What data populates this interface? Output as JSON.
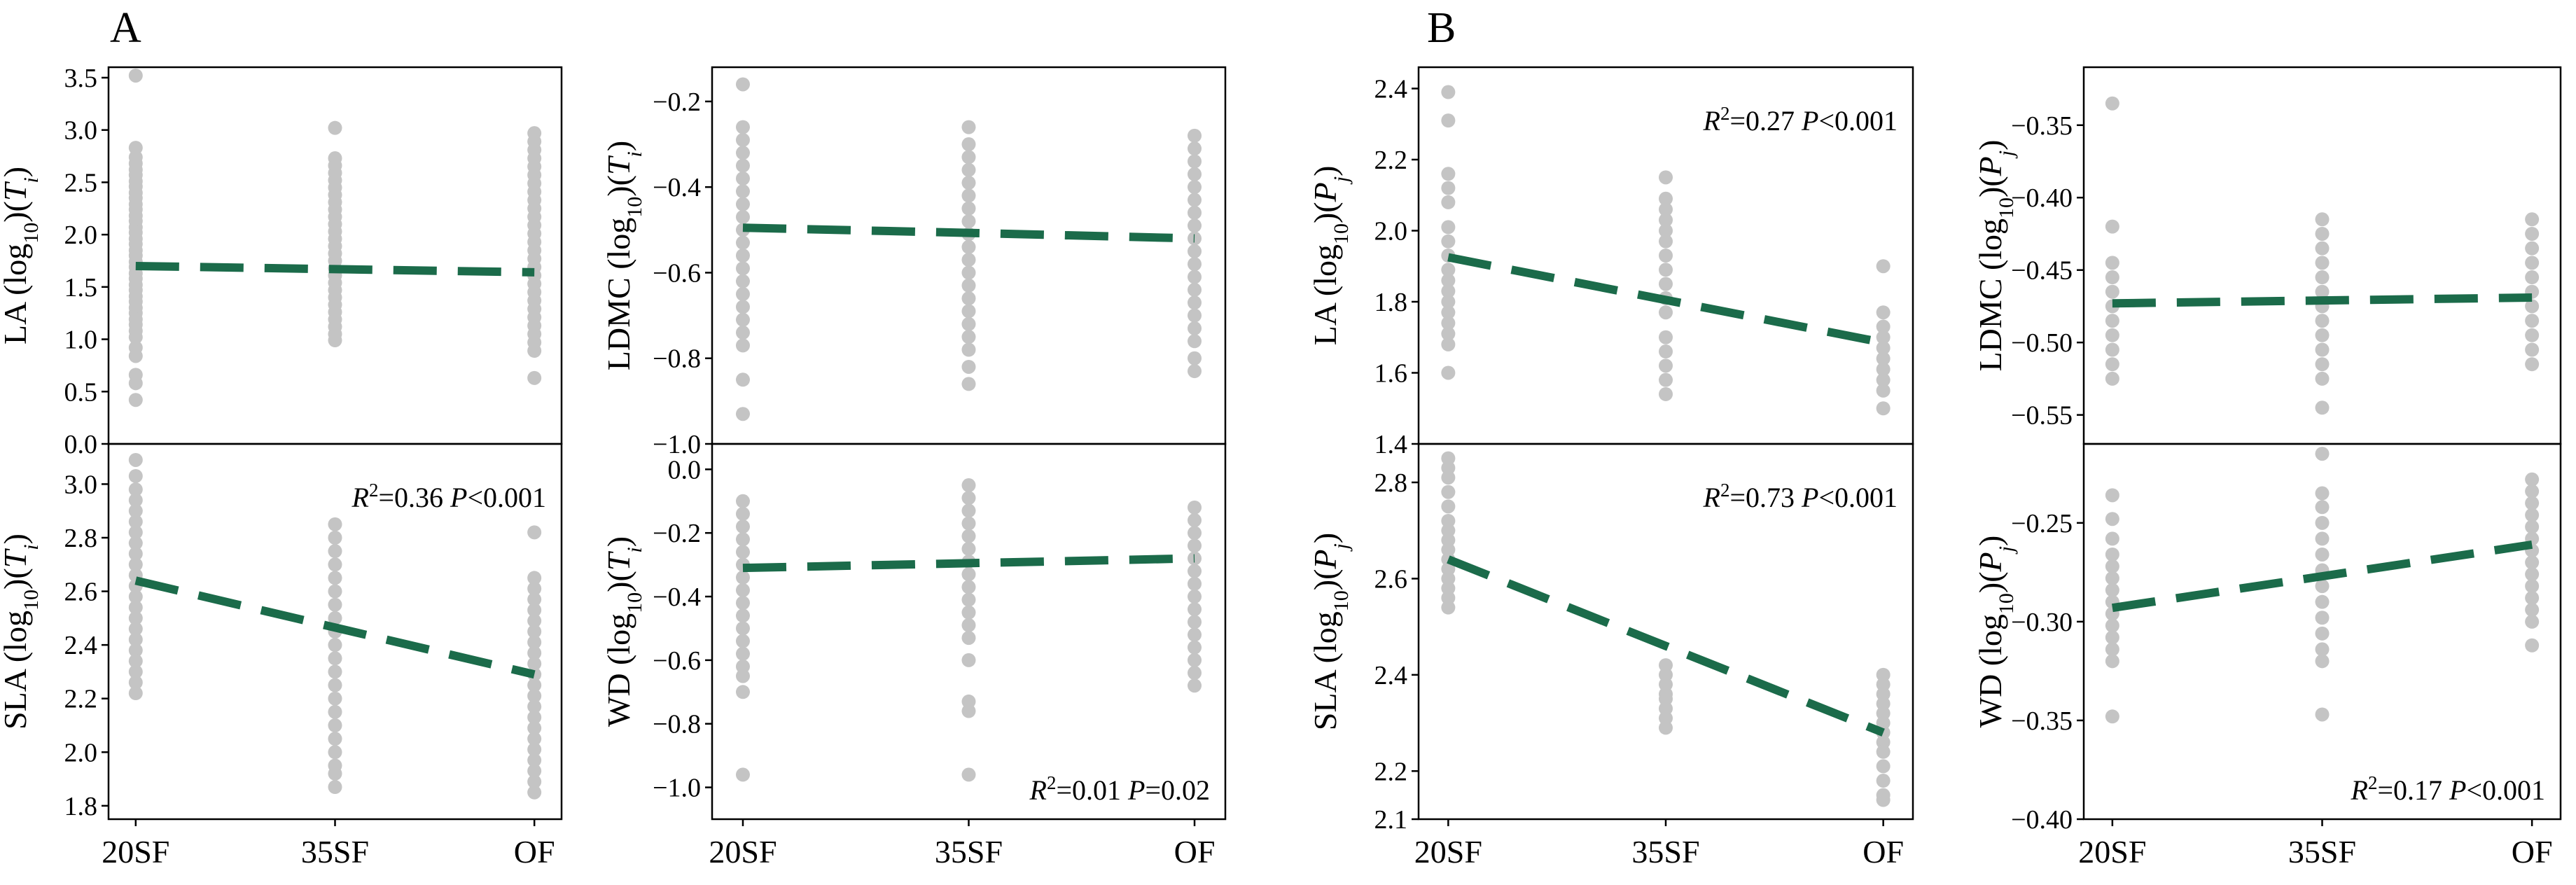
{
  "figure": {
    "groups": [
      {
        "letter": "A",
        "variable": "T"
      },
      {
        "letter": "B",
        "variable": "P"
      }
    ],
    "categories": [
      "20SF",
      "35SF",
      "OF"
    ]
  },
  "colors": {
    "point": "#c4c4c4",
    "trend": "#1b6b4a",
    "frame": "#000000"
  },
  "chart_data": [
    {
      "id": "A-LA",
      "group": "A",
      "type": "scatter",
      "trait": "LA",
      "variable": "T",
      "ylabel": "LA (log10)(Ti)",
      "ylim": [
        0.0,
        3.6
      ],
      "yticks": [
        "0.0",
        "0.5",
        "1.0",
        "1.5",
        "2.0",
        "2.5",
        "3.0",
        "3.5"
      ],
      "categories": [
        "20SF",
        "35SF",
        "OF"
      ],
      "points": [
        [
          3.52,
          2.83,
          2.74,
          2.68,
          2.62,
          2.57,
          2.51,
          2.46,
          2.4,
          2.35,
          2.29,
          2.24,
          2.18,
          2.13,
          2.07,
          2.02,
          1.96,
          1.91,
          1.85,
          1.8,
          1.74,
          1.69,
          1.63,
          1.58,
          1.52,
          1.47,
          1.41,
          1.36,
          1.3,
          1.25,
          1.19,
          1.14,
          1.08,
          1.02,
          0.92,
          0.84,
          0.66,
          0.58,
          0.42
        ],
        [
          3.02,
          2.73,
          2.66,
          2.59,
          2.52,
          2.45,
          2.38,
          2.31,
          2.24,
          2.17,
          2.1,
          2.03,
          1.96,
          1.89,
          1.82,
          1.75,
          1.68,
          1.61,
          1.54,
          1.47,
          1.4,
          1.33,
          1.26,
          1.19,
          1.12,
          1.05,
          0.99
        ],
        [
          2.97,
          2.89,
          2.81,
          2.73,
          2.65,
          2.57,
          2.49,
          2.41,
          2.33,
          2.25,
          2.17,
          2.09,
          2.01,
          1.93,
          1.85,
          1.77,
          1.69,
          1.61,
          1.53,
          1.45,
          1.37,
          1.29,
          1.21,
          1.13,
          1.05,
          0.97,
          0.89,
          0.63
        ]
      ],
      "trend": [
        1.7,
        1.67,
        1.64
      ],
      "stats": null
    },
    {
      "id": "A-LDMC",
      "group": "A",
      "type": "scatter",
      "trait": "LDMC",
      "variable": "T",
      "ylabel": "LDMC (log10)(Ti)",
      "ylim": [
        -1.0,
        -0.12
      ],
      "yticks": [
        "−1.0",
        "−0.8",
        "−0.6",
        "−0.4",
        "−0.2"
      ],
      "categories": [
        "20SF",
        "35SF",
        "OF"
      ],
      "points": [
        [
          -0.16,
          -0.26,
          -0.29,
          -0.32,
          -0.35,
          -0.38,
          -0.41,
          -0.44,
          -0.47,
          -0.5,
          -0.53,
          -0.56,
          -0.59,
          -0.62,
          -0.65,
          -0.68,
          -0.71,
          -0.74,
          -0.77,
          -0.85,
          -0.93
        ],
        [
          -0.26,
          -0.3,
          -0.33,
          -0.36,
          -0.39,
          -0.42,
          -0.45,
          -0.48,
          -0.51,
          -0.54,
          -0.57,
          -0.6,
          -0.63,
          -0.66,
          -0.69,
          -0.72,
          -0.75,
          -0.78,
          -0.82,
          -0.86
        ],
        [
          -0.28,
          -0.31,
          -0.34,
          -0.37,
          -0.4,
          -0.43,
          -0.46,
          -0.49,
          -0.52,
          -0.55,
          -0.58,
          -0.61,
          -0.64,
          -0.67,
          -0.7,
          -0.73,
          -0.76,
          -0.8,
          -0.83
        ]
      ],
      "trend": [
        -0.495,
        -0.507,
        -0.52
      ],
      "stats": null
    },
    {
      "id": "A-SLA",
      "group": "A",
      "type": "scatter",
      "trait": "SLA",
      "variable": "T",
      "ylabel": "SLA (log10)(Ti)",
      "ylim": [
        1.75,
        3.15
      ],
      "yticks": [
        "1.8",
        "2.0",
        "2.2",
        "2.4",
        "2.6",
        "2.8",
        "3.0"
      ],
      "categories": [
        "20SF",
        "35SF",
        "OF"
      ],
      "points": [
        [
          3.09,
          3.03,
          2.98,
          2.94,
          2.9,
          2.86,
          2.82,
          2.78,
          2.74,
          2.7,
          2.66,
          2.62,
          2.58,
          2.54,
          2.5,
          2.46,
          2.42,
          2.38,
          2.34,
          2.3,
          2.26,
          2.22
        ],
        [
          2.85,
          2.8,
          2.75,
          2.7,
          2.65,
          2.6,
          2.55,
          2.5,
          2.45,
          2.4,
          2.35,
          2.3,
          2.25,
          2.2,
          2.15,
          2.1,
          2.05,
          2.0,
          1.95,
          1.92,
          1.87
        ],
        [
          2.82,
          2.65,
          2.61,
          2.57,
          2.53,
          2.49,
          2.45,
          2.41,
          2.37,
          2.33,
          2.29,
          2.25,
          2.21,
          2.17,
          2.13,
          2.09,
          2.05,
          2.01,
          1.97,
          1.93,
          1.89,
          1.85
        ]
      ],
      "trend": [
        2.64,
        2.465,
        2.29
      ],
      "stats": {
        "r2": "R2=0.36",
        "p": "P<0.001"
      }
    },
    {
      "id": "A-WD",
      "group": "A",
      "type": "scatter",
      "trait": "WD",
      "variable": "T",
      "ylabel": "WD (log10)(Ti)",
      "ylim": [
        -1.1,
        0.08
      ],
      "yticks": [
        "−1.0",
        "−0.8",
        "−0.6",
        "−0.4",
        "−0.2",
        "0.0"
      ],
      "categories": [
        "20SF",
        "35SF",
        "OF"
      ],
      "points": [
        [
          -0.1,
          -0.14,
          -0.18,
          -0.22,
          -0.26,
          -0.3,
          -0.34,
          -0.38,
          -0.42,
          -0.46,
          -0.5,
          -0.54,
          -0.58,
          -0.62,
          -0.65,
          -0.7,
          -0.96
        ],
        [
          -0.05,
          -0.09,
          -0.13,
          -0.17,
          -0.21,
          -0.25,
          -0.29,
          -0.33,
          -0.37,
          -0.41,
          -0.45,
          -0.49,
          -0.53,
          -0.6,
          -0.73,
          -0.76,
          -0.96
        ],
        [
          -0.12,
          -0.16,
          -0.2,
          -0.24,
          -0.28,
          -0.32,
          -0.36,
          -0.4,
          -0.44,
          -0.48,
          -0.52,
          -0.56,
          -0.6,
          -0.64,
          -0.68
        ]
      ],
      "trend": [
        -0.31,
        -0.295,
        -0.28
      ],
      "stats": {
        "r2": "R2=0.01",
        "p": "P=0.02"
      }
    },
    {
      "id": "B-LA",
      "group": "B",
      "type": "scatter",
      "trait": "LA",
      "variable": "P",
      "ylabel": "LA (log10)(Pj)",
      "ylim": [
        1.4,
        2.46
      ],
      "yticks": [
        "1.4",
        "1.6",
        "1.8",
        "2.0",
        "2.2",
        "2.4"
      ],
      "categories": [
        "20SF",
        "35SF",
        "OF"
      ],
      "points": [
        [
          2.39,
          2.31,
          2.16,
          2.12,
          2.08,
          2.01,
          1.97,
          1.93,
          1.89,
          1.86,
          1.83,
          1.8,
          1.77,
          1.74,
          1.71,
          1.68,
          1.6
        ],
        [
          2.15,
          2.09,
          2.06,
          2.03,
          2.0,
          1.97,
          1.93,
          1.89,
          1.85,
          1.81,
          1.77,
          1.7,
          1.66,
          1.62,
          1.58,
          1.54
        ],
        [
          1.9,
          1.77,
          1.73,
          1.7,
          1.67,
          1.64,
          1.61,
          1.58,
          1.55,
          1.5
        ]
      ],
      "trend": [
        1.925,
        1.805,
        1.685
      ],
      "stats": {
        "r2": "R2=0.27",
        "p": "P<0.001"
      }
    },
    {
      "id": "B-LDMC",
      "group": "B",
      "type": "scatter",
      "trait": "LDMC",
      "variable": "P",
      "ylabel": "LDMC (log10)(Pj)",
      "ylim": [
        -0.57,
        -0.31
      ],
      "yticks": [
        "−0.55",
        "−0.50",
        "−0.45",
        "−0.40",
        "−0.35"
      ],
      "categories": [
        "20SF",
        "35SF",
        "OF"
      ],
      "points": [
        [
          -0.335,
          -0.42,
          -0.445,
          -0.455,
          -0.465,
          -0.475,
          -0.485,
          -0.495,
          -0.505,
          -0.515,
          -0.525
        ],
        [
          -0.415,
          -0.425,
          -0.435,
          -0.445,
          -0.455,
          -0.465,
          -0.475,
          -0.485,
          -0.495,
          -0.505,
          -0.515,
          -0.525,
          -0.545
        ],
        [
          -0.415,
          -0.425,
          -0.435,
          -0.445,
          -0.455,
          -0.465,
          -0.475,
          -0.485,
          -0.495,
          -0.505,
          -0.515
        ]
      ],
      "trend": [
        -0.473,
        -0.471,
        -0.469
      ],
      "stats": null
    },
    {
      "id": "B-SLA",
      "group": "B",
      "type": "scatter",
      "trait": "SLA",
      "variable": "P",
      "ylabel": "SLA (log10)(Pj)",
      "ylim": [
        2.1,
        2.88
      ],
      "yticks": [
        "2.1",
        "2.2",
        "2.4",
        "2.6",
        "2.8"
      ],
      "categories": [
        "20SF",
        "35SF",
        "OF"
      ],
      "points": [
        [
          2.85,
          2.83,
          2.81,
          2.78,
          2.75,
          2.72,
          2.7,
          2.68,
          2.66,
          2.64,
          2.62,
          2.6,
          2.58,
          2.56,
          2.54
        ],
        [
          2.42,
          2.4,
          2.38,
          2.36,
          2.35,
          2.33,
          2.31,
          2.29
        ],
        [
          2.4,
          2.38,
          2.36,
          2.34,
          2.32,
          2.3,
          2.28,
          2.26,
          2.24,
          2.21,
          2.18,
          2.15,
          2.14
        ]
      ],
      "trend": [
        2.64,
        2.46,
        2.28
      ],
      "stats": {
        "r2": "R2=0.73",
        "p": "P<0.001"
      }
    },
    {
      "id": "B-WD",
      "group": "B",
      "type": "scatter",
      "trait": "WD",
      "variable": "P",
      "ylabel": "WD (log10)(Pj)",
      "ylim": [
        -0.4,
        -0.21
      ],
      "yticks": [
        "−0.40",
        "−0.35",
        "−0.30",
        "−0.25"
      ],
      "categories": [
        "20SF",
        "35SF",
        "OF"
      ],
      "points": [
        [
          -0.236,
          -0.248,
          -0.258,
          -0.266,
          -0.272,
          -0.278,
          -0.284,
          -0.29,
          -0.296,
          -0.302,
          -0.308,
          -0.314,
          -0.32,
          -0.348
        ],
        [
          -0.215,
          -0.235,
          -0.242,
          -0.25,
          -0.258,
          -0.266,
          -0.274,
          -0.282,
          -0.29,
          -0.298,
          -0.306,
          -0.314,
          -0.32,
          -0.347
        ],
        [
          -0.228,
          -0.234,
          -0.24,
          -0.246,
          -0.252,
          -0.258,
          -0.264,
          -0.27,
          -0.276,
          -0.282,
          -0.288,
          -0.294,
          -0.3,
          -0.312
        ]
      ],
      "trend": [
        -0.293,
        -0.277,
        -0.261
      ],
      "stats": {
        "r2": "R2=0.17",
        "p": "P<0.001"
      }
    }
  ]
}
